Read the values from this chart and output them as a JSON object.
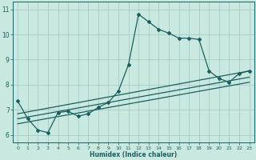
{
  "xlabel": "Humidex (Indice chaleur)",
  "bg_color": "#c8e8e0",
  "grid_color": "#a8ccc8",
  "line_color": "#1a6060",
  "xlim": [
    -0.5,
    23.5
  ],
  "ylim": [
    5.7,
    11.3
  ],
  "yticks": [
    6,
    7,
    8,
    9,
    10,
    11
  ],
  "xticks": [
    0,
    1,
    2,
    3,
    4,
    5,
    6,
    7,
    8,
    9,
    10,
    11,
    12,
    13,
    14,
    15,
    16,
    17,
    18,
    19,
    20,
    21,
    22,
    23
  ],
  "main_x": [
    0,
    1,
    2,
    3,
    4,
    5,
    6,
    7,
    8,
    9,
    10,
    11,
    12,
    13,
    14,
    15,
    16,
    17,
    18,
    19,
    20,
    21,
    22,
    23
  ],
  "main_y": [
    7.35,
    6.65,
    6.2,
    6.1,
    6.9,
    6.95,
    6.75,
    6.85,
    7.1,
    7.3,
    7.75,
    8.8,
    10.8,
    10.5,
    10.2,
    10.05,
    9.85,
    9.85,
    9.8,
    8.55,
    8.25,
    8.1,
    8.45,
    8.55
  ],
  "line1_x": [
    0,
    23
  ],
  "line1_y": [
    6.85,
    8.55
  ],
  "line2_x": [
    0,
    23
  ],
  "line2_y": [
    6.65,
    8.3
  ],
  "line3_x": [
    0,
    23
  ],
  "line3_y": [
    6.45,
    8.1
  ]
}
